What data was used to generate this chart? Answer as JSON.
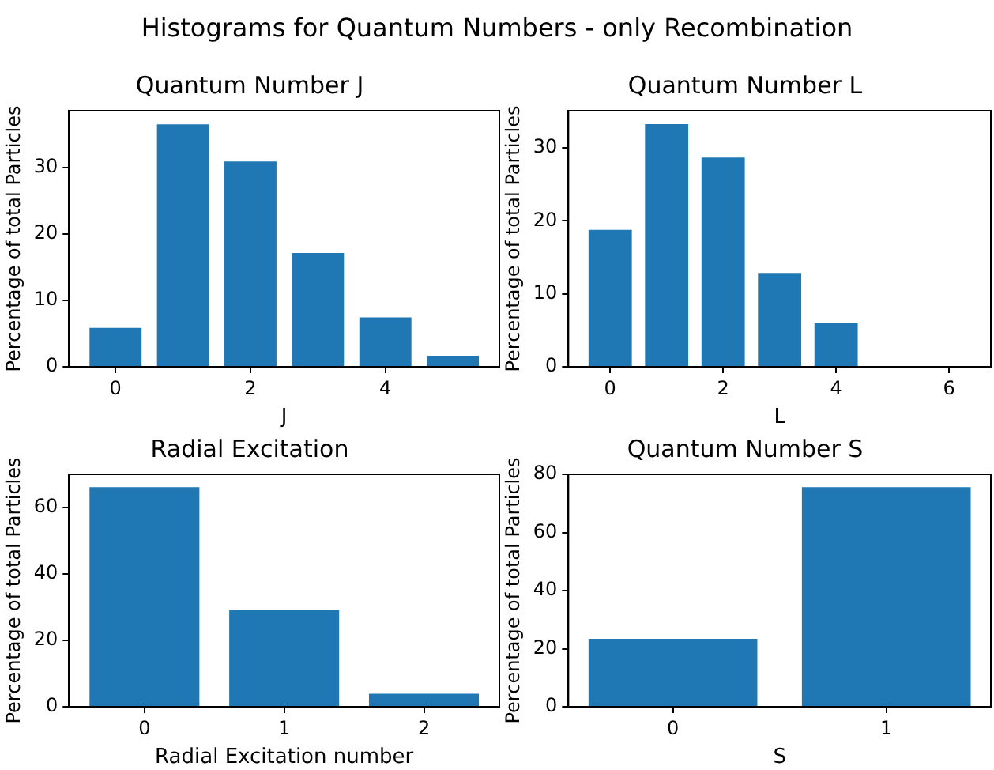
{
  "chart_data": [
    {
      "type": "other",
      "title": "Histograms for Quantum Numbers - only Recombination"
    },
    {
      "type": "bar",
      "title": "Quantum Number J",
      "xlabel": "J",
      "ylabel": "Percentage of total Particles",
      "color": "#1f77b4",
      "x": [
        0,
        1,
        2,
        3,
        4,
        5
      ],
      "values": [
        6.0,
        36.7,
        31.1,
        17.3,
        7.6,
        1.8
      ],
      "xlim": [
        -0.69,
        5.69
      ],
      "xticks": [
        0,
        2,
        4
      ],
      "ylim": [
        0,
        38.6
      ],
      "yticks": [
        0,
        10,
        20,
        30
      ]
    },
    {
      "type": "bar",
      "title": "Quantum Number L",
      "xlabel": "L",
      "ylabel": "Percentage of total Particles",
      "color": "#1f77b4",
      "x": [
        0,
        1,
        2,
        3,
        4,
        5,
        6
      ],
      "values": [
        18.9,
        33.4,
        28.8,
        13.0,
        6.2,
        0,
        0
      ],
      "xlim": [
        -0.74,
        6.74
      ],
      "xticks": [
        0,
        2,
        4,
        6
      ],
      "ylim": [
        0,
        35.1
      ],
      "yticks": [
        0,
        10,
        20,
        30
      ]
    },
    {
      "type": "bar",
      "title": "Radial Excitation",
      "xlabel": "Radial Excitation number",
      "ylabel": "Percentage of total Particles",
      "color": "#1f77b4",
      "x": [
        0,
        1,
        2
      ],
      "values": [
        66.3,
        29.3,
        4.2
      ],
      "xlim": [
        -0.54,
        2.54
      ],
      "xticks": [
        0,
        1,
        2
      ],
      "ylim": [
        0,
        69.9
      ],
      "yticks": [
        0,
        20,
        40,
        60
      ]
    },
    {
      "type": "bar",
      "title": "Quantum Number S",
      "xlabel": "S",
      "ylabel": "Percentage of total Particles",
      "color": "#1f77b4",
      "x": [
        0,
        1
      ],
      "values": [
        23.7,
        75.9
      ],
      "xlim": [
        -0.49,
        1.49
      ],
      "xticks": [
        0,
        1
      ],
      "ylim": [
        0,
        80
      ],
      "yticks": [
        0,
        20,
        40,
        60,
        80
      ]
    }
  ]
}
